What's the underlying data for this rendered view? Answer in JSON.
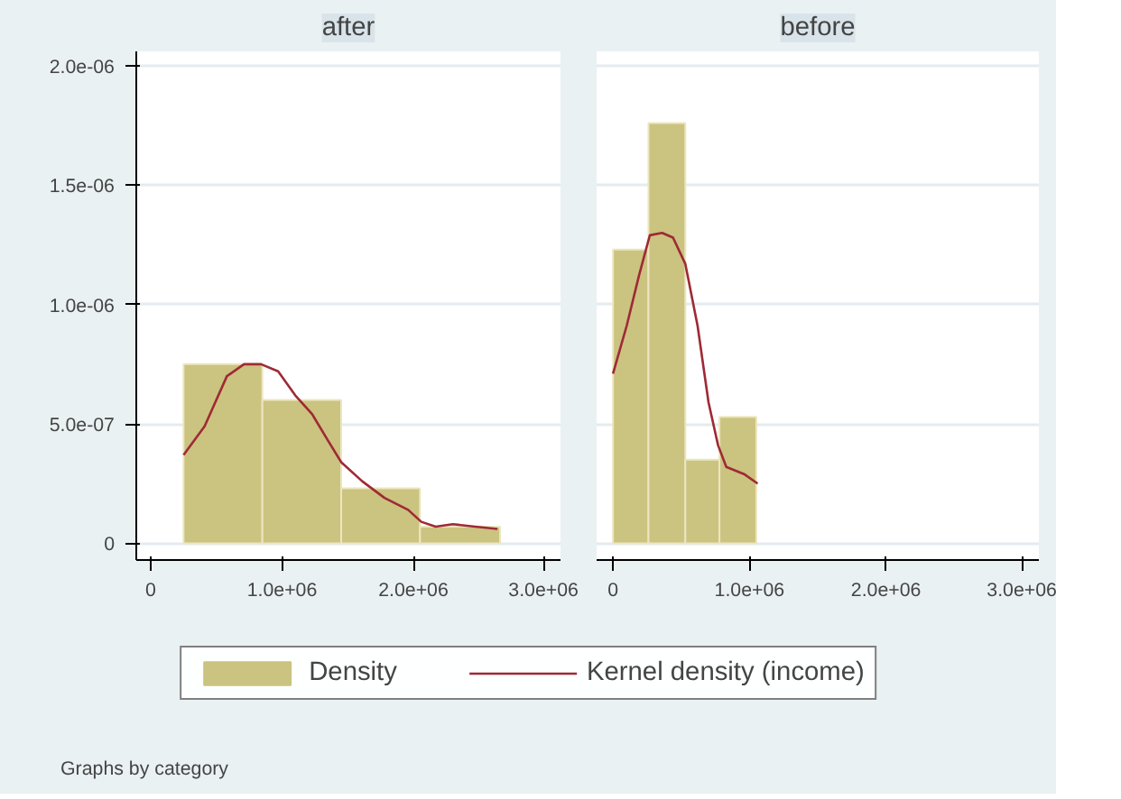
{
  "chart_data": [
    {
      "type": "histogram",
      "title": "after",
      "xlim": [
        -110000,
        3120000
      ],
      "ylim": [
        -7e-08,
        2.06e-06
      ],
      "xticks": [
        0,
        {
          "value": 1000000,
          "label": "1.0e+06"
        },
        {
          "value": 2000000,
          "label": "2.0e+06"
        },
        {
          "value": 3000000,
          "label": "3.0e+06"
        }
      ],
      "yticks": [
        0,
        {
          "value": 5e-07,
          "label": "5.0e-07"
        },
        {
          "value": 1e-06,
          "label": "1.0e-06"
        },
        {
          "value": 1.5e-06,
          "label": "1.5e-06"
        },
        {
          "value": 2e-06,
          "label": "2.0e-06"
        }
      ],
      "grid": "y",
      "legend": "bottom",
      "series": [
        {
          "name": "Density",
          "color": "#cbc380",
          "bins": [
            250000,
            850000,
            1450000,
            2050000,
            2660000
          ],
          "values": [
            7.5e-07,
            6e-07,
            2.3e-07,
            7e-08
          ]
        },
        {
          "name": "Kernel density (income)",
          "type": "line",
          "color": "#9e2a35",
          "x": [
            250000,
            410000,
            580000,
            710000,
            840000,
            970000,
            1100000,
            1230000,
            1350000,
            1450000,
            1610000,
            1780000,
            1960000,
            2060000,
            2170000,
            2300000,
            2470000,
            2640000
          ],
          "values": [
            3.7e-07,
            4.9e-07,
            7e-07,
            7.5e-07,
            7.5e-07,
            7.2e-07,
            6.2e-07,
            5.4e-07,
            4.3e-07,
            3.4e-07,
            2.6e-07,
            1.9e-07,
            1.4e-07,
            9e-08,
            7e-08,
            8e-08,
            7e-08,
            6e-08
          ]
        }
      ]
    },
    {
      "type": "histogram",
      "title": "before",
      "xlim": [
        -120000,
        3120000
      ],
      "ylim": [
        -7e-08,
        2.06e-06
      ],
      "xticks": [
        0,
        {
          "value": 1000000,
          "label": "1.0e+06"
        },
        {
          "value": 2000000,
          "label": "2.0e+06"
        },
        {
          "value": 3000000,
          "label": "3.0e+06"
        }
      ],
      "yticks": [
        {
          "value": 0,
          "label": null
        },
        {
          "value": 5e-07,
          "label": null
        },
        {
          "value": 1e-06,
          "label": null
        },
        {
          "value": 1.5e-06,
          "label": null
        },
        {
          "value": 2e-06,
          "label": null
        }
      ],
      "grid": "y",
      "tick_labels": "x",
      "annotations": [
        "Graphs by category"
      ],
      "series": [
        {
          "color": "#cbc380",
          "bins": [
            0,
            260000,
            530000,
            780000,
            1050000
          ],
          "values": [
            1.23e-06,
            1.76e-06,
            3.5e-07,
            5.3e-07
          ]
        },
        {
          "type": "line",
          "color": "#9e2a35",
          "x": [
            0,
            100000,
            190000,
            270000,
            360000,
            440000,
            530000,
            620000,
            700000,
            770000,
            830000,
            960000,
            1060000
          ],
          "values": [
            7.1e-07,
            9.1e-07,
            1.12e-06,
            1.29e-06,
            1.3e-06,
            1.28e-06,
            1.17e-06,
            9.1e-07,
            5.9e-07,
            4.1e-07,
            3.2e-07,
            2.9e-07,
            2.5e-07
          ]
        }
      ]
    }
  ]
}
